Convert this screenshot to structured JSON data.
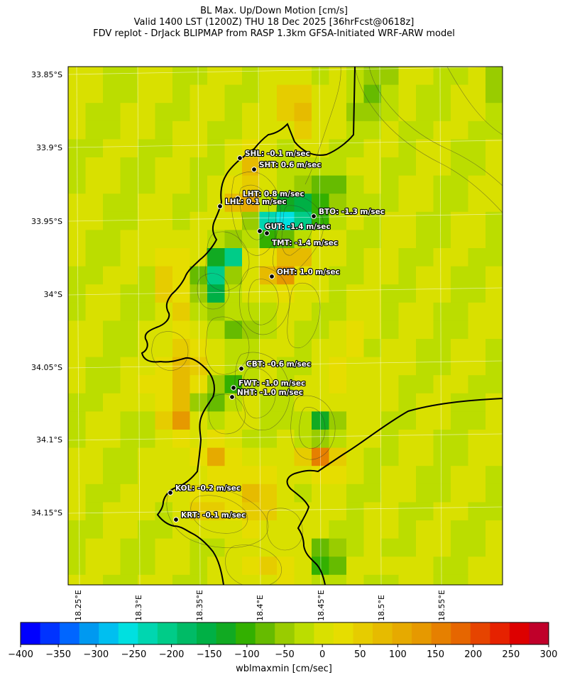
{
  "title": {
    "line1": "BL Max. Up/Down Motion [cm/s]",
    "line2": "Valid 1400 LST (1200Z) THU 18 Dec 2025 [36hrFcst@0618z]",
    "line3": "FDV replot - DrJack BLIPMAP from RASP 1.3km GFSA-Initiated WRF-ARW model"
  },
  "lat_labels": [
    "33.85°S",
    "33.9°S",
    "33.95°S",
    "34°S",
    "34.05°S",
    "34.1°S",
    "34.15°S"
  ],
  "lon_labels": [
    "18.25°E",
    "18.3°E",
    "18.35°E",
    "18.4°E",
    "18.45°E",
    "18.5°E",
    "18.55°E"
  ],
  "stations": [
    {
      "code": "SHL",
      "text": "SHL: -0.1 m/sec",
      "value": -0.1
    },
    {
      "code": "SHT",
      "text": "SHT: 0.6 m/sec",
      "value": 0.6
    },
    {
      "code": "LHT",
      "text": "LHT: 0.8 m/sec",
      "value": 0.8
    },
    {
      "code": "LHL",
      "text": "LHL: 0.1 m/sec",
      "value": 0.1
    },
    {
      "code": "BTO",
      "text": "BTO: -1.3 m/sec",
      "value": -1.3
    },
    {
      "code": "GUT",
      "text": "GUT: -1.4 m/sec",
      "value": -1.4
    },
    {
      "code": "TMT",
      "text": "TMT: -1.4 m/sec",
      "value": -1.4
    },
    {
      "code": "OHT",
      "text": "OHT: 1.0 m/sec",
      "value": 1.0
    },
    {
      "code": "CBT",
      "text": "CBT: -0.6 m/sec",
      "value": -0.6
    },
    {
      "code": "FWT",
      "text": "FWT: -1.0 m/sec",
      "value": -1.0
    },
    {
      "code": "NHT",
      "text": "NHT: -1.0 m/sec",
      "value": -1.0
    },
    {
      "code": "KOL",
      "text": "KOL: -0.2 m/sec",
      "value": -0.2
    },
    {
      "code": "KRT",
      "text": "KRT: -0.1 m/sec",
      "value": -0.1
    }
  ],
  "colorbar": {
    "label": "wblmaxmin [cm/sec]",
    "ticks": [
      "−400",
      "−350",
      "−300",
      "−250",
      "−200",
      "−150",
      "−100",
      "−50",
      "0",
      "50",
      "100",
      "150",
      "200",
      "250",
      "300"
    ],
    "colors": [
      "#0000ff",
      "#0033ff",
      "#0066ff",
      "#0099f0",
      "#00bff0",
      "#00e0e0",
      "#00d6b0",
      "#00cc88",
      "#00bb66",
      "#00b045",
      "#11aa22",
      "#33b000",
      "#66bb00",
      "#99cc00",
      "#bbdd00",
      "#d9e000",
      "#e6dd00",
      "#e6cc00",
      "#e6bb00",
      "#e6aa00",
      "#e69900",
      "#e68000",
      "#e66600",
      "#e64400",
      "#e62200",
      "#dd0000",
      "#c0002a"
    ]
  }
}
